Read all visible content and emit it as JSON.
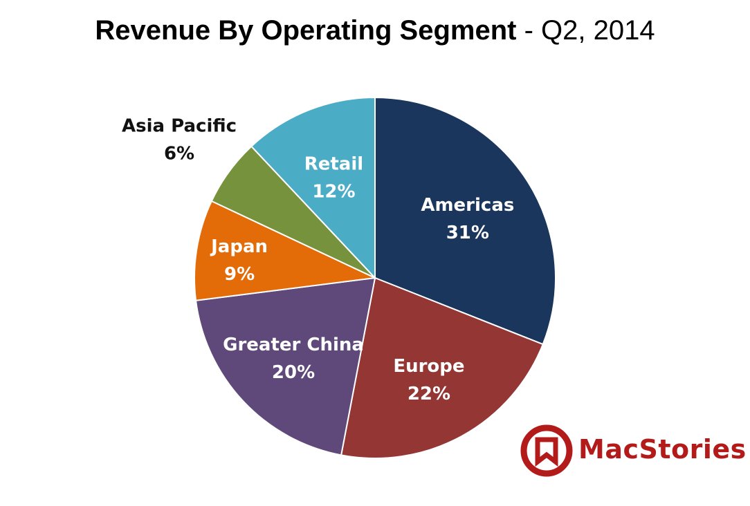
{
  "header": {
    "title_main": "Revenue By Operating Segment",
    "title_sub": " - Q2, 2014"
  },
  "chart_data": {
    "type": "pie",
    "title": "Revenue By Operating Segment - Q2, 2014",
    "slices": [
      {
        "label": "Americas",
        "value": 31,
        "display": "31%",
        "color": "#1b365d",
        "label_position": "inside"
      },
      {
        "label": "Europe",
        "value": 22,
        "display": "22%",
        "color": "#943634",
        "label_position": "inside"
      },
      {
        "label": "Greater China",
        "value": 20,
        "display": "20%",
        "color": "#5f497a",
        "label_position": "inside"
      },
      {
        "label": "Japan",
        "value": 9,
        "display": "9%",
        "color": "#e36c09",
        "label_position": "inside"
      },
      {
        "label": "Asia Pacific",
        "value": 6,
        "display": "6%",
        "color": "#76923c",
        "label_position": "outside"
      },
      {
        "label": "Retail",
        "value": 12,
        "display": "12%",
        "color": "#4bacc6",
        "label_position": "inside"
      }
    ],
    "start_angle": "12 o'clock",
    "direction": "clockwise",
    "legend": "none"
  },
  "logo": {
    "text": "MacStories",
    "icon": "bookmark-icon",
    "color": "#b31b1b"
  }
}
